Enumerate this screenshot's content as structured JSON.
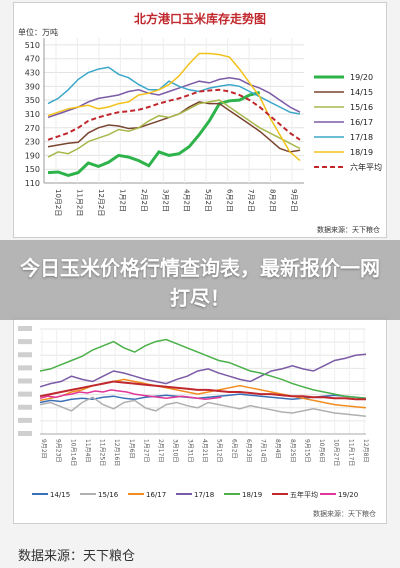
{
  "headline": "今日玉米价格行情查询表，最新报价一网打尽！",
  "footer_source": "数据来源：天下粮仓",
  "chart_data": [
    {
      "type": "line",
      "title": "北方港口玉米库存走势图",
      "unit_label": "单位：万吨",
      "source": "数据来源：天下粮仓",
      "ylim": [
        110,
        530
      ],
      "yticks": [
        110,
        150,
        190,
        230,
        270,
        310,
        350,
        390,
        430,
        470,
        510
      ],
      "x_ticks": [
        "10月2日",
        "11月2日",
        "12月2日",
        "1月2日",
        "2月2日",
        "3月2日",
        "4月2日",
        "5月2日",
        "6月2日",
        "7月2日",
        "8月2日",
        "9月2日"
      ],
      "grid": true,
      "legend_position": "right",
      "series": [
        {
          "name": "19/20",
          "color": "#2db34a",
          "dash": "",
          "width": 3,
          "values": [
            140,
            142,
            132,
            140,
            168,
            158,
            170,
            190,
            185,
            175,
            160,
            200,
            190,
            195,
            215,
            250,
            290,
            340,
            348,
            350,
            365,
            372
          ]
        },
        {
          "name": "14/15",
          "color": "#7a4530",
          "dash": "",
          "width": 1.5,
          "values": [
            215,
            220,
            225,
            228,
            255,
            270,
            278,
            275,
            268,
            270,
            280,
            290,
            300,
            310,
            330,
            345,
            340,
            340,
            320,
            300,
            280,
            260,
            235,
            210,
            200,
            205
          ]
        },
        {
          "name": "15/16",
          "color": "#a8b84a",
          "dash": "",
          "width": 1.5,
          "values": [
            185,
            200,
            195,
            210,
            230,
            240,
            250,
            265,
            260,
            270,
            290,
            305,
            300,
            310,
            325,
            340,
            345,
            350,
            330,
            310,
            290,
            270,
            255,
            240,
            225,
            210
          ]
        },
        {
          "name": "16/17",
          "color": "#7b5aa6",
          "dash": "",
          "width": 1.5,
          "values": [
            300,
            310,
            320,
            330,
            345,
            355,
            360,
            365,
            375,
            380,
            370,
            365,
            375,
            385,
            395,
            405,
            400,
            410,
            415,
            410,
            395,
            385,
            370,
            350,
            330,
            315
          ]
        },
        {
          "name": "17/18",
          "color": "#3ba7c9",
          "dash": "",
          "width": 1.5,
          "values": [
            340,
            355,
            380,
            410,
            430,
            440,
            445,
            425,
            415,
            395,
            380,
            380,
            405,
            390,
            380,
            375,
            385,
            390,
            395,
            390,
            375,
            360,
            345,
            330,
            315,
            310
          ]
        },
        {
          "name": "18/19",
          "color": "#f2c21a",
          "dash": "",
          "width": 1.5,
          "values": [
            305,
            315,
            325,
            330,
            335,
            325,
            330,
            340,
            345,
            365,
            370,
            380,
            395,
            420,
            455,
            485,
            485,
            482,
            475,
            440,
            400,
            360,
            300,
            250,
            200,
            175
          ]
        },
        {
          "name": "六年平均",
          "color": "#c0282d",
          "dash": "5,3",
          "width": 2,
          "values": [
            235,
            245,
            255,
            270,
            290,
            300,
            308,
            315,
            318,
            322,
            330,
            340,
            348,
            355,
            365,
            375,
            378,
            380,
            375,
            365,
            350,
            330,
            305,
            280,
            255,
            235
          ]
        }
      ]
    },
    {
      "type": "line",
      "title": "",
      "source": "数据来源：天下粮仓",
      "yticks_visible": [
        "",
        "",
        "",
        "",
        "",
        "",
        "",
        "",
        ""
      ],
      "x_ticks_visible": [
        "9月2日",
        "9月23日",
        "10月14日",
        "11月4日",
        "11月25日",
        "12月16日",
        "1月6日",
        "1月27日",
        "2月17日",
        "3月10日",
        "3月31日",
        "4月21日",
        "5月12日",
        "6月2日",
        "6月23日",
        "7月14日",
        "8月4日",
        "8月25日",
        "9月15日",
        "10月6日",
        "10月27日",
        "11月17日",
        "12月8日"
      ],
      "grid": true,
      "legend_position": "bottom",
      "series": [
        {
          "name": "14/15",
          "color": "#3b6fb6",
          "values": [
            0.3,
            0.32,
            0.31,
            0.33,
            0.34,
            0.33,
            0.35,
            0.36,
            0.34,
            0.33,
            0.35,
            0.36,
            0.37,
            0.36,
            0.35,
            0.34,
            0.35,
            0.36,
            0.37,
            0.38,
            0.37,
            0.36,
            0.35,
            0.34,
            0.33,
            0.34,
            0.35,
            0.36,
            0.37,
            0.36,
            0.35,
            0.34
          ]
        },
        {
          "name": "15/16",
          "color": "#b0b0b0",
          "values": [
            0.28,
            0.3,
            0.26,
            0.22,
            0.3,
            0.35,
            0.28,
            0.24,
            0.3,
            0.32,
            0.25,
            0.22,
            0.28,
            0.3,
            0.27,
            0.25,
            0.3,
            0.28,
            0.26,
            0.24,
            0.27,
            0.25,
            0.23,
            0.21,
            0.2,
            0.22,
            0.24,
            0.22,
            0.2,
            0.19,
            0.18,
            0.17
          ]
        },
        {
          "name": "16/17",
          "color": "#f28c1f",
          "values": [
            0.32,
            0.34,
            0.36,
            0.4,
            0.42,
            0.46,
            0.48,
            0.5,
            0.52,
            0.5,
            0.48,
            0.46,
            0.44,
            0.42,
            0.4,
            0.38,
            0.4,
            0.42,
            0.44,
            0.46,
            0.44,
            0.42,
            0.4,
            0.38,
            0.36,
            0.34,
            0.32,
            0.3,
            0.28,
            0.27,
            0.26,
            0.25
          ]
        },
        {
          "name": "17/18",
          "color": "#7b5aa6",
          "values": [
            0.45,
            0.48,
            0.5,
            0.55,
            0.52,
            0.5,
            0.55,
            0.6,
            0.58,
            0.55,
            0.52,
            0.5,
            0.48,
            0.52,
            0.55,
            0.6,
            0.62,
            0.58,
            0.55,
            0.52,
            0.5,
            0.55,
            0.6,
            0.62,
            0.65,
            0.62,
            0.6,
            0.65,
            0.7,
            0.72,
            0.75,
            0.76
          ]
        },
        {
          "name": "18/19",
          "color": "#4bb04a",
          "values": [
            0.6,
            0.62,
            0.66,
            0.7,
            0.74,
            0.8,
            0.84,
            0.88,
            0.82,
            0.78,
            0.84,
            0.88,
            0.9,
            0.86,
            0.82,
            0.78,
            0.74,
            0.7,
            0.68,
            0.64,
            0.6,
            0.58,
            0.55,
            0.52,
            0.48,
            0.45,
            0.42,
            0.4,
            0.38,
            0.36,
            0.35,
            0.34
          ]
        },
        {
          "name": "五年平均",
          "color": "#c0282d",
          "width": 2,
          "values": [
            0.36,
            0.38,
            0.4,
            0.42,
            0.44,
            0.46,
            0.48,
            0.5,
            0.49,
            0.48,
            0.47,
            0.46,
            0.45,
            0.44,
            0.43,
            0.42,
            0.42,
            0.41,
            0.4,
            0.4,
            0.39,
            0.38,
            0.38,
            0.37,
            0.36,
            0.36,
            0.35,
            0.35,
            0.34,
            0.34,
            0.33,
            0.33
          ]
        },
        {
          "name": "19/20",
          "color": "#e0389a",
          "values": [
            0.34,
            0.36,
            0.35,
            0.37,
            0.38,
            0.4,
            0.39,
            0.41,
            0.4,
            0.42,
            0.41,
            0.4,
            0.38,
            0.37,
            0.36,
            0.35,
            0.34,
            0.35,
            0.36,
            0.35,
            0.34,
            0.33,
            0.34,
            0.35
          ]
        }
      ]
    }
  ]
}
